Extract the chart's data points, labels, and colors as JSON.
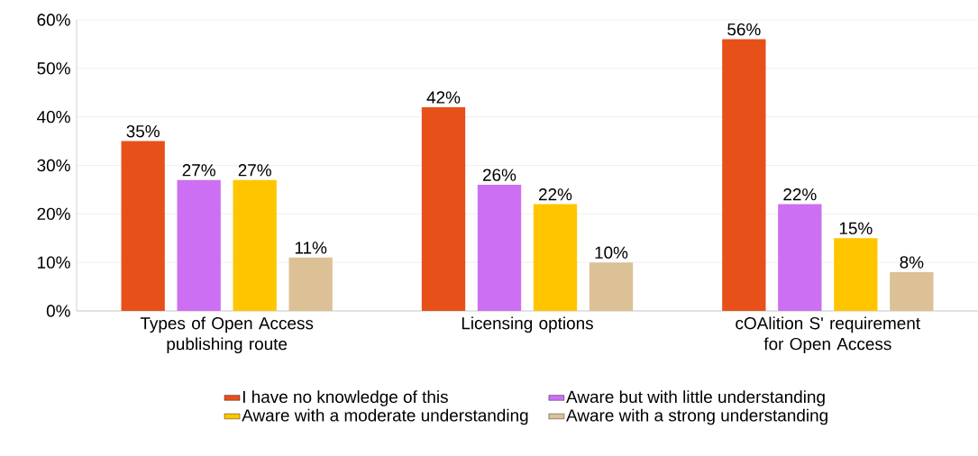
{
  "chart_data": {
    "type": "bar",
    "categories": [
      "Types of Open Access publishing route",
      "Licensing options",
      "cOAlition S' requirement for Open Access"
    ],
    "series": [
      {
        "name": "I have no knowledge of this",
        "color": "#e8501a",
        "values": [
          35,
          42,
          56
        ],
        "value_labels": [
          "35%",
          "42%",
          "56%"
        ]
      },
      {
        "name": "Aware but with little understanding",
        "color": "#cc6ff2",
        "values": [
          27,
          26,
          22
        ],
        "value_labels": [
          "27%",
          "26%",
          "22%"
        ]
      },
      {
        "name": "Aware with a moderate understanding",
        "color": "#ffc600",
        "values": [
          27,
          22,
          15
        ],
        "value_labels": [
          "27%",
          "22%",
          "15%"
        ]
      },
      {
        "name": "Aware with a strong understanding",
        "color": "#dcc196",
        "values": [
          11,
          10,
          8
        ],
        "value_labels": [
          "11%",
          "10%",
          "8%"
        ]
      }
    ],
    "ylim": [
      0,
      60
    ],
    "yticks": [
      {
        "value": 0,
        "label": "0%"
      },
      {
        "value": 10,
        "label": "10%"
      },
      {
        "value": 20,
        "label": "20%"
      },
      {
        "value": 30,
        "label": "30%"
      },
      {
        "value": 40,
        "label": "40%"
      },
      {
        "value": 50,
        "label": "50%"
      },
      {
        "value": 60,
        "label": "60%"
      }
    ],
    "grid": "y",
    "legend": "bottom"
  }
}
